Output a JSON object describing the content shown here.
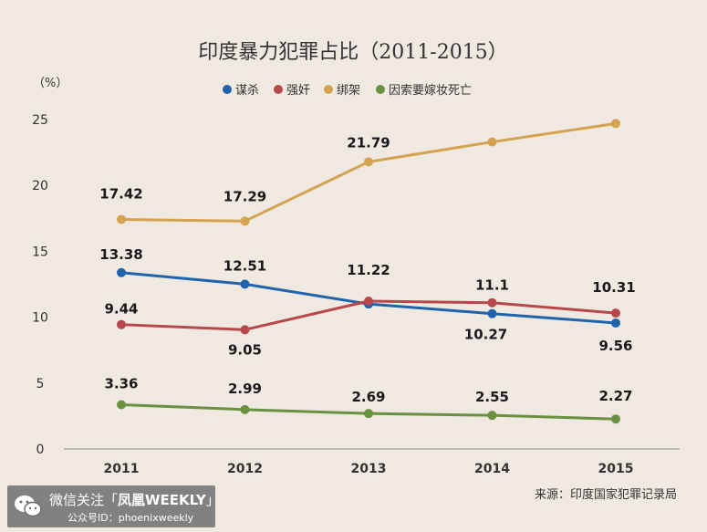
{
  "chart_data": {
    "type": "line",
    "title": "印度暴力犯罪占比（2011-2015）",
    "ylabel": "（%）",
    "xlabel": "",
    "categories": [
      "2011",
      "2012",
      "2013",
      "2014",
      "2015"
    ],
    "ylim": [
      0,
      25
    ],
    "yticks": [
      "0",
      "5",
      "10",
      "15",
      "20",
      "25"
    ],
    "grid": false,
    "legend_position": "top-center",
    "series": [
      {
        "name": "谋杀",
        "color": "#1f63ac",
        "values": [
          13.38,
          12.51,
          11.0,
          10.27,
          9.56
        ],
        "labels": [
          "13.38",
          "12.51",
          "",
          "10.27",
          "9.56"
        ]
      },
      {
        "name": "强奸",
        "color": "#b8474b",
        "values": [
          9.44,
          9.05,
          11.22,
          11.1,
          10.31
        ],
        "labels": [
          "9.44",
          "9.05",
          "11.22",
          "11.1",
          "10.31"
        ]
      },
      {
        "name": "绑架",
        "color": "#d3a352",
        "values": [
          17.42,
          17.29,
          21.79,
          23.3,
          24.7
        ],
        "labels": [
          "17.42",
          "17.29",
          "21.79",
          "",
          ""
        ]
      },
      {
        "name": "因索要嫁妆死亡",
        "color": "#6a9140",
        "values": [
          3.36,
          2.99,
          2.69,
          2.55,
          2.27
        ],
        "labels": [
          "3.36",
          "2.99",
          "2.69",
          "2.55",
          "2.27"
        ]
      }
    ],
    "source": "来源：印度国家犯罪记录局"
  },
  "watermark": {
    "line1_prefix": "微信关注「",
    "brand": "凤凰WEEKLY",
    "line1_suffix": "」",
    "line2": "公众号ID：phoenixweekly",
    "icon": "wechat-icon"
  }
}
